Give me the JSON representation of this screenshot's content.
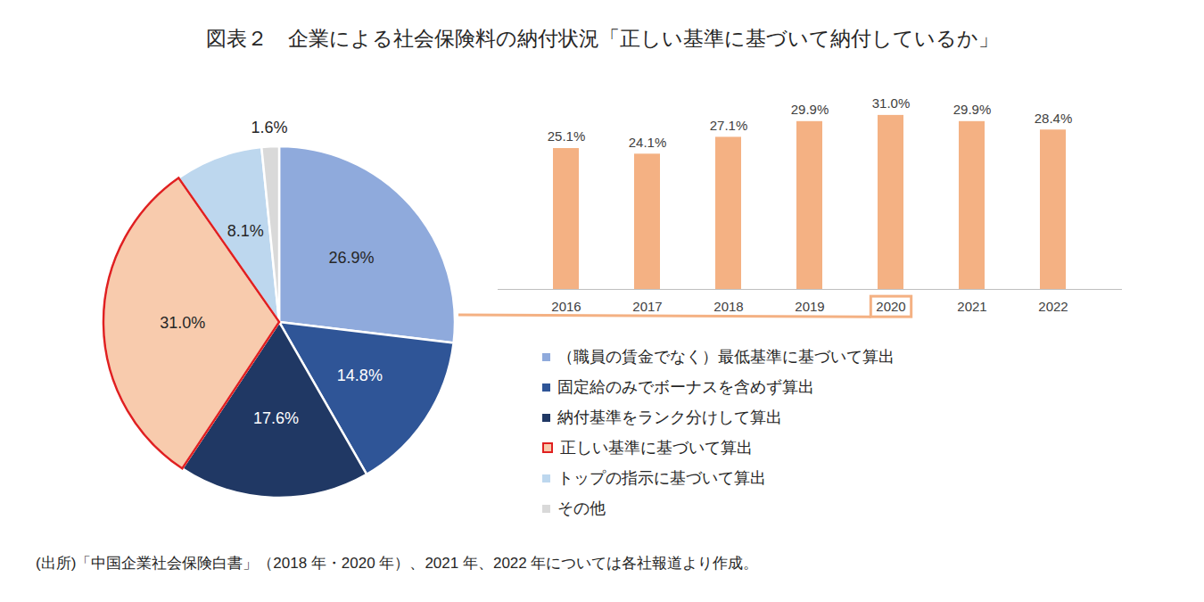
{
  "title": "図表２　企業による社会保険料の納付状況「正しい基準に基づいて納付しているか」",
  "source": "(出所)「中国企業社会保険白書」（2018 年・2020 年）、2021 年、2022 年については各社報道より作成。",
  "chart_data": [
    {
      "type": "pie",
      "categories": [
        "（職員の賃金でなく）最低基準に基づいて算出",
        "固定給のみでボーナスを含めず算出",
        "納付基準をランク分けして算出",
        "正しい基準に基づいて算出",
        "トップの指示に基づいて算出",
        "その他"
      ],
      "values": [
        26.9,
        14.8,
        17.6,
        31.0,
        8.1,
        1.6
      ],
      "value_labels": [
        "26.9%",
        "14.8%",
        "17.6%",
        "31.0%",
        "8.1%",
        "1.6%"
      ],
      "colors": [
        "#8faadc",
        "#2f5597",
        "#203864",
        "#f8cbad",
        "#bdd7ee",
        "#d9d9d9"
      ],
      "data_labels": true,
      "legend": "right"
    },
    {
      "type": "bar",
      "categories": [
        "2016",
        "2017",
        "2018",
        "2019",
        "2020",
        "2021",
        "2022"
      ],
      "values": [
        25.1,
        24.1,
        27.1,
        29.9,
        31.0,
        29.9,
        28.4
      ],
      "value_labels": [
        "25.1%",
        "24.1%",
        "27.1%",
        "29.9%",
        "31.0%",
        "29.9%",
        "28.4%"
      ],
      "color": "#f4b183",
      "ylim": [
        0,
        34
      ],
      "data_labels": true,
      "tick_labels": "x"
    }
  ]
}
